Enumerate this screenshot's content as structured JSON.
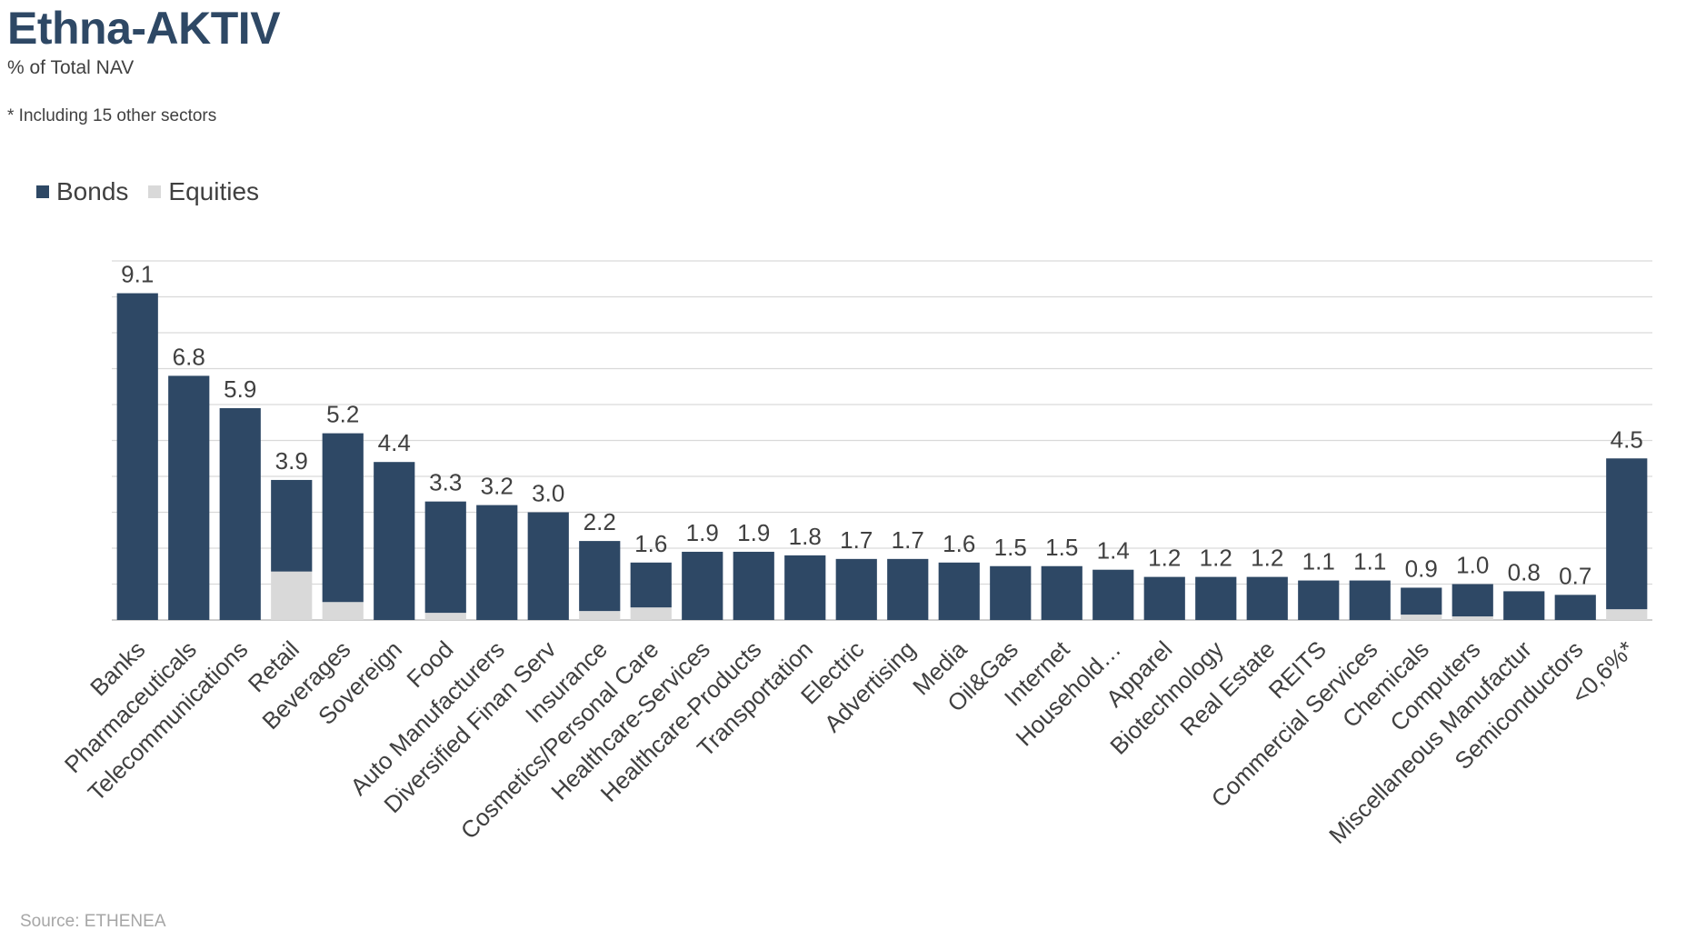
{
  "header": {
    "title": "Ethna-AKTIV",
    "subtitle": "% of Total NAV",
    "note": "* Including 15 other sectors"
  },
  "source": "Source: ETHENEA",
  "legend": {
    "bonds_label": "Bonds",
    "equities_label": "Equities"
  },
  "colors": {
    "bonds": "#2e4865",
    "equities": "#d9d9d9",
    "grid": "#d9d9d9",
    "axis": "#bfbfbf"
  },
  "chart_data": {
    "type": "bar",
    "stacked": true,
    "categories": [
      "Banks",
      "Pharmaceuticals",
      "Telecommunications",
      "Retail",
      "Beverages",
      "Sovereign",
      "Food",
      "Auto Manufacturers",
      "Diversified Finan Serv",
      "Insurance",
      "Cosmetics/Personal Care",
      "Healthcare-Services",
      "Healthcare-Products",
      "Transportation",
      "Electric",
      "Advertising",
      "Media",
      "Oil&Gas",
      "Internet",
      "Household…",
      "Apparel",
      "Biotechnology",
      "Real Estate",
      "REITS",
      "Commercial Services",
      "Chemicals",
      "Computers",
      "Miscellaneous Manufactur",
      "Semiconductors",
      "<0,6%*"
    ],
    "series": [
      {
        "name": "Bonds",
        "values": [
          9.1,
          6.8,
          5.9,
          2.55,
          4.7,
          4.4,
          3.1,
          3.2,
          3.0,
          1.95,
          1.25,
          1.9,
          1.9,
          1.8,
          1.7,
          1.7,
          1.6,
          1.5,
          1.5,
          1.4,
          1.2,
          1.2,
          1.2,
          1.1,
          1.1,
          0.75,
          0.9,
          0.8,
          0.7,
          4.2
        ]
      },
      {
        "name": "Equities",
        "values": [
          0,
          0,
          0,
          1.35,
          0.5,
          0,
          0.2,
          0,
          0,
          0.25,
          0.35,
          0,
          0,
          0,
          0,
          0,
          0,
          0,
          0,
          0,
          0,
          0,
          0,
          0,
          0,
          0.15,
          0.1,
          0,
          0,
          0.3
        ]
      }
    ],
    "totals": [
      "9.1",
      "6.8",
      "5.9",
      "3.9",
      "5.2",
      "4.4",
      "3.3",
      "3.2",
      "3.0",
      "2.2",
      "1.6",
      "1.9",
      "1.9",
      "1.8",
      "1.7",
      "1.7",
      "1.6",
      "1.5",
      "1.5",
      "1.4",
      "1.2",
      "1.2",
      "1.2",
      "1.1",
      "1.1",
      "0.9",
      "1.0",
      "0.8",
      "0.7",
      "4.5"
    ],
    "ylim": [
      0,
      10
    ],
    "grid": true
  }
}
